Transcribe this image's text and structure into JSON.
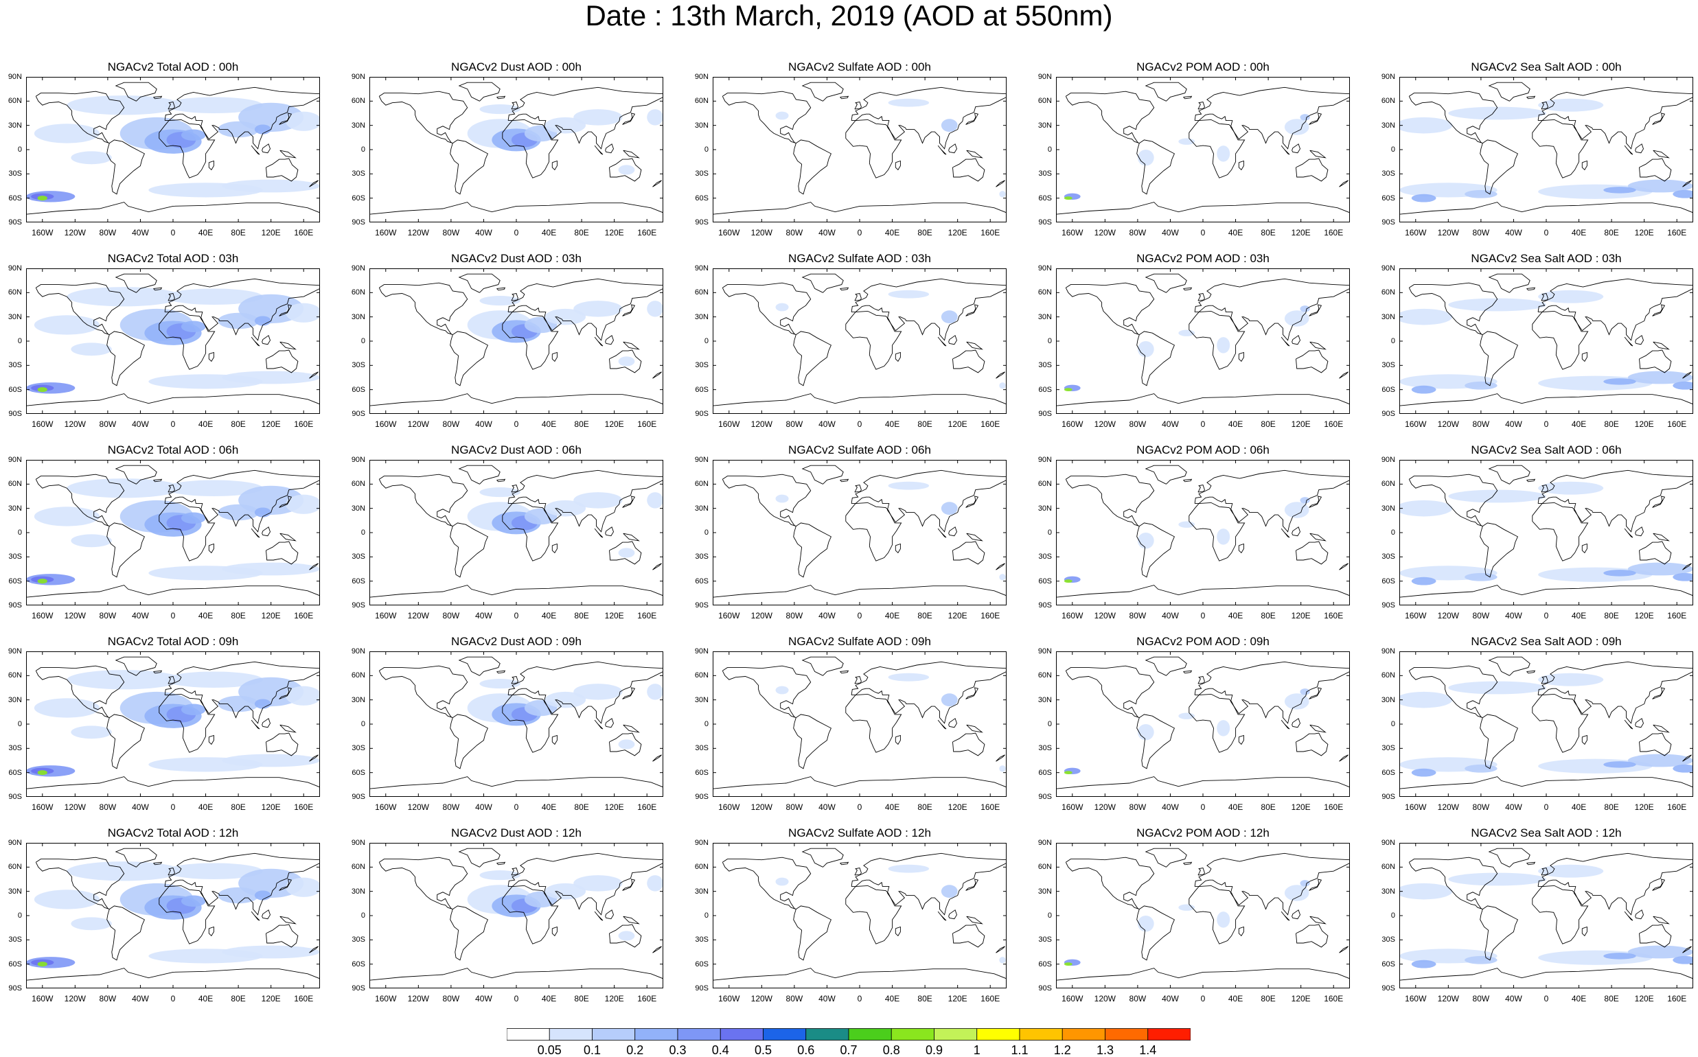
{
  "title": "Date : 13th March, 2019 (AOD at 550nm)",
  "colorbar": {
    "labels": [
      "0.05",
      "0.1",
      "0.2",
      "0.3",
      "0.4",
      "0.5",
      "0.6",
      "0.7",
      "0.8",
      "0.9",
      "1",
      "1.1",
      "1.2",
      "1.3",
      "1.4"
    ],
    "colors": [
      "#ffffff",
      "#d6e4fd",
      "#b6cdfb",
      "#92b2f9",
      "#7e97f6",
      "#6a73f0",
      "#1c64e8",
      "#1a8c86",
      "#4bce1c",
      "#8ae61e",
      "#c3f258",
      "#ffff00",
      "#ffc400",
      "#ff9600",
      "#ff6a00",
      "#ff1e00"
    ]
  },
  "lat_ticks": [
    "90N",
    "60N",
    "30N",
    "0",
    "30S",
    "60S",
    "90S"
  ],
  "lon_ticks": [
    "160W",
    "120W",
    "80W",
    "40W",
    "0",
    "40E",
    "80E",
    "120E",
    "160E"
  ],
  "panels": [
    {
      "title": "NGACv2 Total AOD : 00h",
      "product": "total"
    },
    {
      "title": "NGACv2 Dust AOD : 00h",
      "product": "dust"
    },
    {
      "title": "NGACv2 Sulfate AOD : 00h",
      "product": "sulfate"
    },
    {
      "title": "NGACv2 POM AOD : 00h",
      "product": "pom"
    },
    {
      "title": "NGACv2 Sea Salt AOD : 00h",
      "product": "seasalt"
    },
    {
      "title": "NGACv2 Total AOD : 03h",
      "product": "total"
    },
    {
      "title": "NGACv2 Dust AOD : 03h",
      "product": "dust"
    },
    {
      "title": "NGACv2 Sulfate AOD : 03h",
      "product": "sulfate"
    },
    {
      "title": "NGACv2 POM AOD : 03h",
      "product": "pom"
    },
    {
      "title": "NGACv2 Sea Salt AOD : 03h",
      "product": "seasalt"
    },
    {
      "title": "NGACv2 Total AOD : 06h",
      "product": "total"
    },
    {
      "title": "NGACv2 Dust AOD : 06h",
      "product": "dust"
    },
    {
      "title": "NGACv2 Sulfate AOD : 06h",
      "product": "sulfate"
    },
    {
      "title": "NGACv2 POM AOD : 06h",
      "product": "pom"
    },
    {
      "title": "NGACv2 Sea Salt AOD : 06h",
      "product": "seasalt"
    },
    {
      "title": "NGACv2 Total AOD : 09h",
      "product": "total"
    },
    {
      "title": "NGACv2 Dust AOD : 09h",
      "product": "dust"
    },
    {
      "title": "NGACv2 Sulfate AOD : 09h",
      "product": "sulfate"
    },
    {
      "title": "NGACv2 POM AOD : 09h",
      "product": "pom"
    },
    {
      "title": "NGACv2 Sea Salt  AOD : 09h",
      "product": "seasalt"
    },
    {
      "title": "NGACv2 Total AOD :  12h",
      "product": "total"
    },
    {
      "title": "NGACv2 Dust AOD : 12h",
      "product": "dust"
    },
    {
      "title": "NGACv2 Sulfate AOD : 12h",
      "product": "sulfate"
    },
    {
      "title": "NGACv2 POM  AOD : 12h",
      "product": "pom"
    },
    {
      "title": "NGACv2 Sea Salt AOD : 12h",
      "product": "seasalt"
    }
  ]
}
